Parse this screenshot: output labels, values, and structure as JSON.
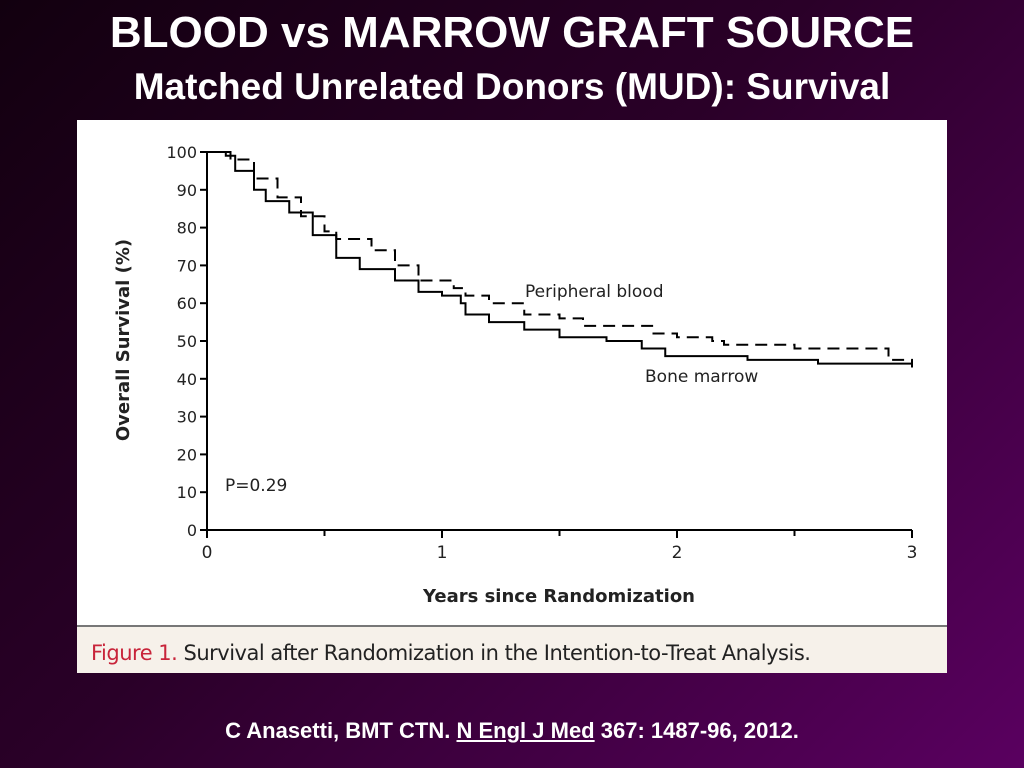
{
  "slide": {
    "title": "BLOOD vs MARROW GRAFT SOURCE",
    "subtitle": "Matched Unrelated Donors (MUD): Survival",
    "figure_caption_label": "Figure 1.",
    "figure_caption_text": " Survival after Randomization in the Intention-to-Treat Analysis.",
    "citation_prefix": "C Anasetti, BMT CTN. ",
    "citation_journal": "N Engl J Med",
    "citation_suffix": " 367: 1487-96, 2012."
  },
  "chart_data": {
    "type": "line",
    "style": "step (Kaplan-Meier)",
    "xlabel": "Years since Randomization",
    "ylabel": "Overall Survival (%)",
    "xlim": [
      0,
      3
    ],
    "ylim": [
      0,
      100
    ],
    "xticks": [
      "0",
      "1",
      "2",
      "3"
    ],
    "yticks": [
      "0",
      "10",
      "20",
      "30",
      "40",
      "50",
      "60",
      "70",
      "80",
      "90",
      "100"
    ],
    "grid": false,
    "annotation": "P=0.29",
    "series": [
      {
        "name": "Peripheral blood",
        "dash": true,
        "x": [
          0,
          0.1,
          0.2,
          0.3,
          0.4,
          0.5,
          0.55,
          0.7,
          0.8,
          0.9,
          1.05,
          1.1,
          1.2,
          1.35,
          1.5,
          1.6,
          1.9,
          2.0,
          2.15,
          2.2,
          2.5,
          2.9,
          3.0
        ],
        "y": [
          100,
          98,
          93,
          88,
          83,
          79,
          77,
          74,
          70,
          66,
          64,
          62,
          60,
          57,
          56,
          54,
          52,
          51,
          50,
          49,
          48,
          45,
          43
        ]
      },
      {
        "name": "Bone marrow",
        "dash": false,
        "x": [
          0,
          0.08,
          0.12,
          0.2,
          0.25,
          0.35,
          0.45,
          0.55,
          0.65,
          0.8,
          0.9,
          1.0,
          1.08,
          1.1,
          1.2,
          1.35,
          1.5,
          1.7,
          1.85,
          1.95,
          2.2,
          2.3,
          2.6,
          2.95,
          3.0
        ],
        "y": [
          100,
          99,
          95,
          90,
          87,
          84,
          78,
          72,
          69,
          66,
          63,
          62,
          60,
          57,
          55,
          53,
          51,
          50,
          48,
          46,
          46,
          45,
          44,
          44,
          43
        ]
      }
    ]
  }
}
